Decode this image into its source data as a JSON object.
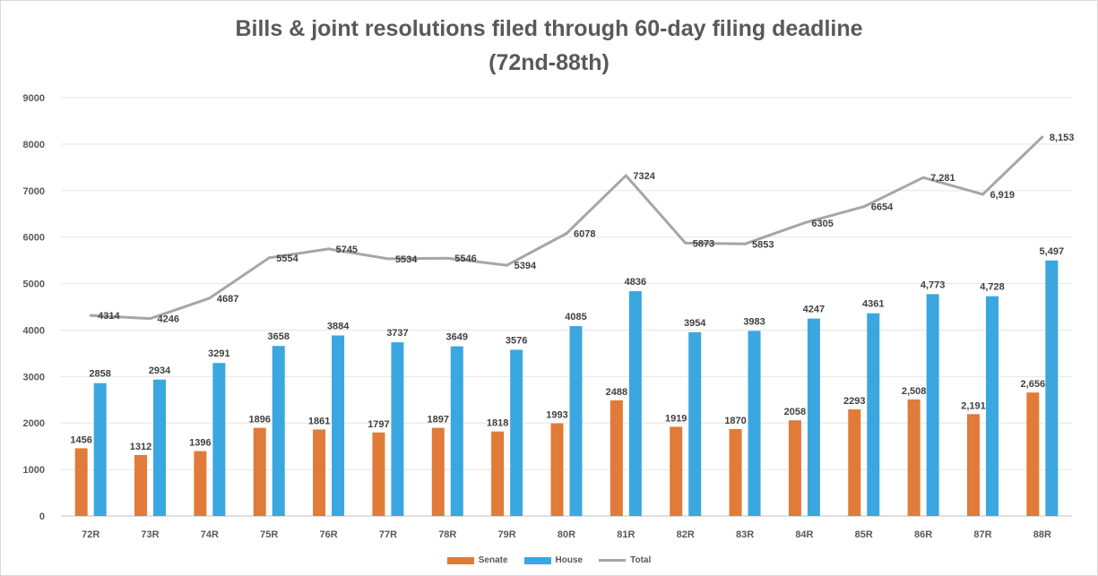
{
  "chart_data": {
    "type": "bar",
    "title": "Bills & joint resolutions filed through 60-day filing deadline",
    "subtitle": "(72nd-88th)",
    "categories": [
      "72R",
      "73R",
      "74R",
      "75R",
      "76R",
      "77R",
      "78R",
      "79R",
      "80R",
      "81R",
      "82R",
      "83R",
      "84R",
      "85R",
      "86R",
      "87R",
      "88R"
    ],
    "ylim": [
      0,
      9000
    ],
    "yticks": [
      0,
      1000,
      2000,
      3000,
      4000,
      5000,
      6000,
      7000,
      8000,
      9000
    ],
    "grid": true,
    "legend_position": "bottom",
    "series": [
      {
        "name": "Senate",
        "type": "bar",
        "color": "#e07b39",
        "values": [
          1456,
          1312,
          1396,
          1896,
          1861,
          1797,
          1897,
          1818,
          1993,
          2488,
          1919,
          1870,
          2058,
          2293,
          2508,
          2191,
          2656
        ],
        "labels": [
          "1456",
          "1312",
          "1396",
          "1896",
          "1861",
          "1797",
          "1897",
          "1818",
          "1993",
          "2488",
          "1919",
          "1870",
          "2058",
          "2293",
          "2,508",
          "2,191",
          "2,656"
        ]
      },
      {
        "name": "House",
        "type": "bar",
        "color": "#3ba7e0",
        "values": [
          2858,
          2934,
          3291,
          3658,
          3884,
          3737,
          3649,
          3576,
          4085,
          4836,
          3954,
          3983,
          4247,
          4361,
          4773,
          4728,
          5497
        ],
        "labels": [
          "2858",
          "2934",
          "3291",
          "3658",
          "3884",
          "3737",
          "3649",
          "3576",
          "4085",
          "4836",
          "3954",
          "3983",
          "4247",
          "4361",
          "4,773",
          "4,728",
          "5,497"
        ]
      },
      {
        "name": "Total",
        "type": "line",
        "color": "#a6a6a6",
        "values": [
          4314,
          4246,
          4687,
          5554,
          5745,
          5534,
          5546,
          5394,
          6078,
          7324,
          5873,
          5853,
          6305,
          6654,
          7281,
          6919,
          8153
        ],
        "labels": [
          "4314",
          "4246",
          "4687",
          "5554",
          "5745",
          "5534",
          "5546",
          "5394",
          "6078",
          "7324",
          "5873",
          "5853",
          "6305",
          "6654",
          "7,281",
          "6,919",
          "8,153"
        ]
      }
    ]
  }
}
